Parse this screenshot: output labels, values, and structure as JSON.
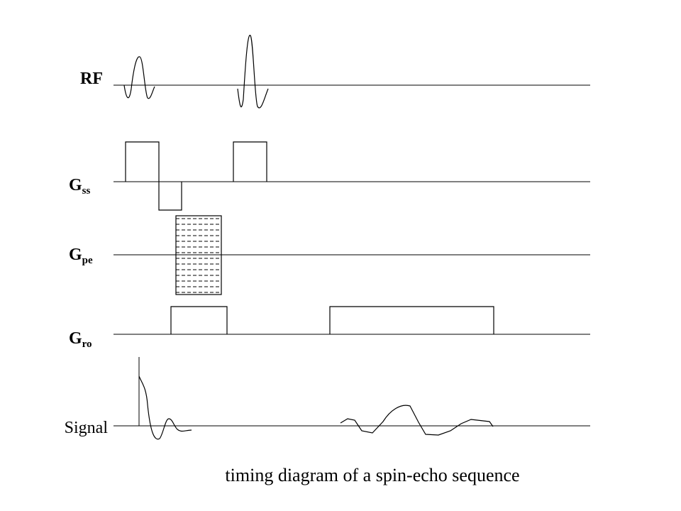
{
  "rows": [
    {
      "label": "RF"
    },
    {
      "label": "G",
      "subscript": "ss"
    },
    {
      "label": "G",
      "subscript": "pe"
    },
    {
      "label": "G",
      "subscript": "ro"
    },
    {
      "label": "Signal"
    }
  ],
  "caption": "timing diagram of a spin-echo sequence"
}
